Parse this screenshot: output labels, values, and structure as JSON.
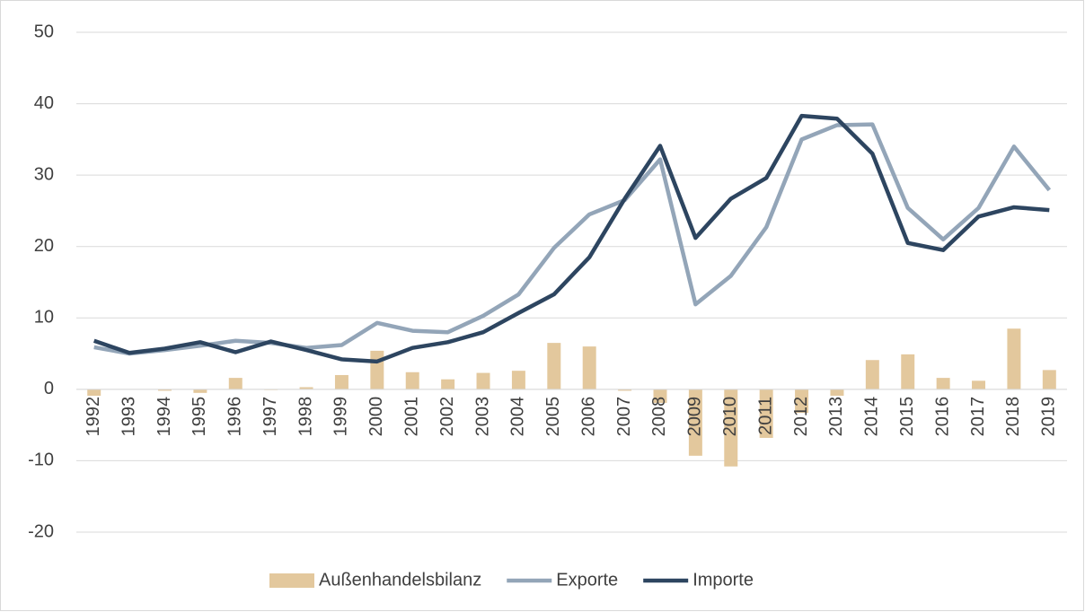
{
  "chart_data": {
    "type": "bar-line",
    "categories": [
      "1992",
      "1993",
      "1994",
      "1995",
      "1996",
      "1997",
      "1998",
      "1999",
      "2000",
      "2001",
      "2002",
      "2003",
      "2004",
      "2005",
      "2006",
      "2007",
      "2008",
      "2009",
      "2010",
      "2011",
      "2012",
      "2013",
      "2014",
      "2015",
      "2016",
      "2017",
      "2018",
      "2019"
    ],
    "series": [
      {
        "name": "Außenhandelsbilanz",
        "type": "bar",
        "color": "#e3c89d",
        "values": [
          -0.9,
          0,
          -0.2,
          -0.5,
          1.6,
          -0.1,
          0.3,
          2.0,
          5.4,
          2.4,
          1.4,
          2.3,
          2.6,
          6.5,
          6.0,
          -0.2,
          -1.9,
          -9.3,
          -10.8,
          -6.8,
          -3.3,
          -0.9,
          4.1,
          4.9,
          1.6,
          1.2,
          8.5,
          2.7
        ]
      },
      {
        "name": "Exporte",
        "type": "line",
        "color": "#93a5b8",
        "values": [
          5.9,
          5.0,
          5.5,
          6.1,
          6.8,
          6.5,
          5.8,
          6.2,
          9.3,
          8.2,
          8.0,
          10.3,
          13.3,
          19.8,
          24.5,
          26.5,
          32.2,
          11.9,
          15.9,
          22.7,
          35.0,
          37.0,
          37.1,
          25.4,
          21.0,
          25.4,
          34.0,
          27.9
        ]
      },
      {
        "name": "Importe",
        "type": "line",
        "color": "#2d4560",
        "values": [
          6.8,
          5.1,
          5.7,
          6.6,
          5.2,
          6.7,
          5.5,
          4.2,
          3.9,
          5.8,
          6.6,
          8.0,
          10.7,
          13.3,
          18.5,
          26.7,
          34.1,
          21.2,
          26.7,
          29.6,
          38.3,
          37.9,
          33.0,
          20.5,
          19.5,
          24.2,
          25.5,
          25.1
        ]
      }
    ],
    "ylim": [
      -20,
      50
    ],
    "yticks": [
      -20,
      -10,
      0,
      10,
      20,
      30,
      40,
      50
    ],
    "grid": true,
    "legend": "bottom"
  }
}
